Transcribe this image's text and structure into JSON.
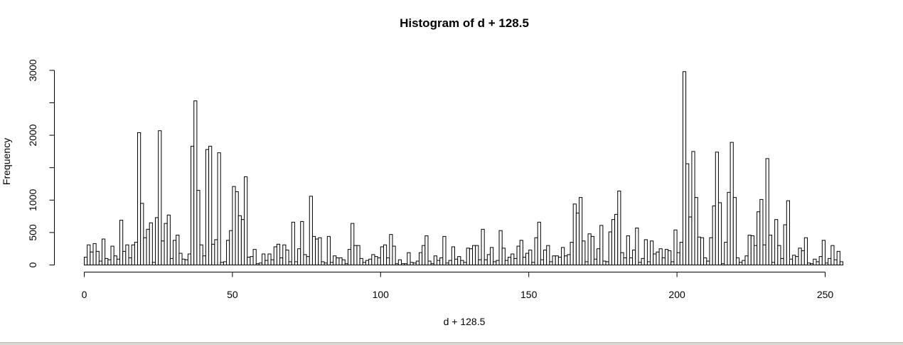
{
  "chart_data": {
    "type": "bar",
    "title": "Histogram of d + 128.5",
    "xlabel": "d + 128.5",
    "ylabel": "Frequency",
    "xlim": [
      0,
      256
    ],
    "ylim": [
      0,
      3200
    ],
    "xticks": [
      0,
      50,
      100,
      150,
      200,
      250
    ],
    "yticks": [
      0,
      500,
      1000,
      2000,
      3000
    ],
    "bin_width": 1,
    "bin_start": 0,
    "values": [
      120,
      310,
      200,
      330,
      210,
      60,
      400,
      100,
      80,
      290,
      140,
      90,
      690,
      210,
      310,
      110,
      310,
      350,
      2040,
      950,
      420,
      550,
      650,
      40,
      730,
      2070,
      370,
      640,
      770,
      100,
      380,
      460,
      180,
      90,
      80,
      170,
      1830,
      2530,
      1150,
      310,
      140,
      1780,
      1830,
      320,
      390,
      1730,
      40,
      50,
      380,
      530,
      1210,
      1130,
      760,
      700,
      1360,
      120,
      130,
      240,
      20,
      30,
      170,
      70,
      170,
      80,
      280,
      320,
      110,
      310,
      230,
      50,
      660,
      50,
      250,
      670,
      160,
      130,
      1060,
      440,
      400,
      420,
      50,
      30,
      440,
      40,
      140,
      110,
      110,
      80,
      20,
      240,
      640,
      300,
      300,
      100,
      40,
      70,
      90,
      160,
      130,
      110,
      280,
      310,
      110,
      470,
      290,
      20,
      80,
      20,
      20,
      190,
      40,
      30,
      60,
      190,
      300,
      450,
      60,
      20,
      140,
      70,
      110,
      440,
      30,
      70,
      280,
      90,
      130,
      70,
      40,
      260,
      250,
      300,
      300,
      80,
      550,
      80,
      160,
      270,
      50,
      70,
      530,
      260,
      70,
      120,
      170,
      100,
      290,
      380,
      120,
      180,
      230,
      40,
      420,
      660,
      80,
      230,
      300,
      50,
      140,
      140,
      120,
      270,
      140,
      160,
      350,
      940,
      800,
      1040,
      370,
      50,
      480,
      440,
      90,
      250,
      610,
      60,
      50,
      510,
      700,
      780,
      1140,
      190,
      110,
      450,
      110,
      230,
      570,
      40,
      100,
      390,
      50,
      370,
      170,
      200,
      250,
      110,
      240,
      220,
      50,
      540,
      190,
      350,
      2980,
      1560,
      740,
      1750,
      1040,
      430,
      420,
      110,
      60,
      420,
      910,
      1740,
      960,
      20,
      350,
      1120,
      1890,
      1040,
      110,
      40,
      70,
      140,
      460,
      450,
      300,
      820,
      1010,
      310,
      1640,
      460,
      40,
      700,
      300,
      100,
      620,
      990,
      90,
      150,
      130,
      260,
      220,
      420,
      30,
      20,
      90,
      50,
      130,
      380,
      30,
      100,
      300,
      80,
      210,
      50
    ]
  }
}
